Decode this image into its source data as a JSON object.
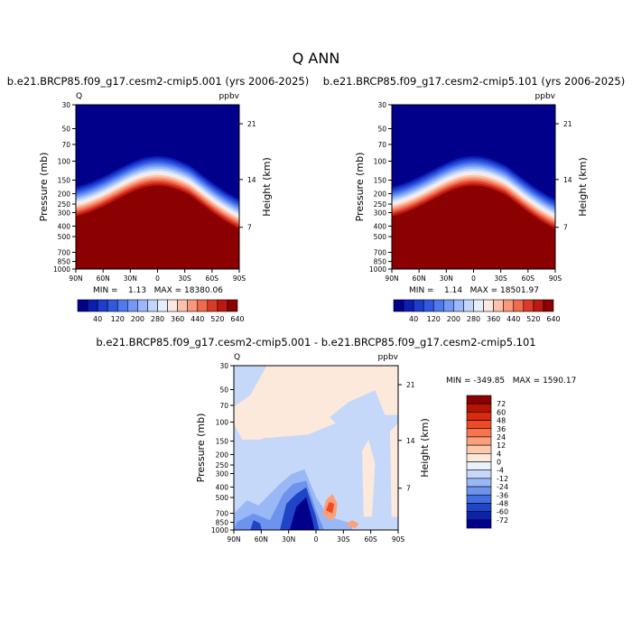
{
  "page_title": "Q ANN",
  "panels": [
    {
      "title": "b.e21.BRCP85.f09_g17.cesm2-cmip5.001 (yrs 2006-2025)",
      "left_label": "Q",
      "right_label": "ppbv",
      "min_max": "MIN =    1.13   MAX = 18380.06",
      "ylabel": "Pressure (mb)",
      "ylabel_right": "Height (km)"
    },
    {
      "title": "b.e21.BRCP85.f09_g17.cesm2-cmip5.101 (yrs 2006-2025)",
      "left_label": "",
      "right_label": "ppbv",
      "min_max": "MIN =    1.14   MAX = 18501.97",
      "ylabel": "Pressure (mb)",
      "ylabel_right": "Height (km)"
    },
    {
      "title": "b.e21.BRCP85.f09_g17.cesm2-cmip5.001 - b.e21.BRCP85.f09_g17.cesm2-cmip5.101",
      "left_label": "Q",
      "right_label": "ppbv",
      "min_max": "MIN = -349.85   MAX = 1590.17",
      "ylabel": "Pressure (mb)",
      "ylabel_right": "Height (km)"
    }
  ],
  "chart_data": [
    {
      "type": "heatmap",
      "x_ticks": [
        "90N",
        "60N",
        "30N",
        "0",
        "30S",
        "60S",
        "90S"
      ],
      "y_ticks": [
        30,
        50,
        70,
        100,
        150,
        200,
        250,
        300,
        400,
        500,
        700,
        850,
        1000
      ],
      "y_scale": "log",
      "ylim": [
        30,
        1000
      ],
      "right_ticks": [
        "21",
        "14",
        "7"
      ],
      "colorbar_levels": [
        40,
        120,
        200,
        280,
        360,
        440,
        520,
        640
      ],
      "colorbar_orientation": "horizontal",
      "colors": [
        "#00008b",
        "#0a1eb4",
        "#1e3ccd",
        "#3258e0",
        "#4f7aef",
        "#7399f6",
        "#9ab8fb",
        "#c2d6fd",
        "#e6eefc",
        "#fde8df",
        "#fcc3ac",
        "#f9987a",
        "#f06a4d",
        "#db3a28",
        "#bb1810",
        "#8b0000"
      ]
    },
    {
      "type": "heatmap",
      "x_ticks": [
        "90N",
        "60N",
        "30N",
        "0",
        "30S",
        "60S",
        "90S"
      ],
      "y_ticks": [
        30,
        50,
        70,
        100,
        150,
        200,
        250,
        300,
        400,
        500,
        700,
        850,
        1000
      ],
      "y_scale": "log",
      "ylim": [
        30,
        1000
      ],
      "right_ticks": [
        "21",
        "14",
        "7"
      ],
      "colorbar_levels": [
        40,
        120,
        200,
        280,
        360,
        440,
        520,
        640
      ],
      "colorbar_orientation": "horizontal",
      "colors": [
        "#00008b",
        "#0a1eb4",
        "#1e3ccd",
        "#3258e0",
        "#4f7aef",
        "#7399f6",
        "#9ab8fb",
        "#c2d6fd",
        "#e6eefc",
        "#fde8df",
        "#fcc3ac",
        "#f9987a",
        "#f06a4d",
        "#db3a28",
        "#bb1810",
        "#8b0000"
      ]
    },
    {
      "type": "heatmap",
      "x_ticks": [
        "90N",
        "60N",
        "30N",
        "0",
        "30S",
        "60S",
        "90S"
      ],
      "y_ticks": [
        30,
        50,
        70,
        100,
        150,
        200,
        250,
        300,
        400,
        500,
        700,
        850,
        1000
      ],
      "y_scale": "log",
      "ylim": [
        30,
        1000
      ],
      "right_ticks": [
        "21",
        "14",
        "7"
      ],
      "colorbar_levels": [
        72,
        60,
        48,
        36,
        24,
        12,
        4,
        0,
        -4,
        -12,
        -24,
        -36,
        -48,
        -60,
        -72
      ],
      "colorbar_orientation": "vertical",
      "colors": [
        "#8b0000",
        "#b41400",
        "#d72a0e",
        "#ee4a26",
        "#f8744c",
        "#fba07a",
        "#fdc9ab",
        "#fce9dc",
        "#eaf1fb",
        "#c5d8fa",
        "#9ab8f6",
        "#6e93ee",
        "#436ee2",
        "#1f44c8",
        "#0c22a8",
        "#00008b"
      ]
    }
  ]
}
